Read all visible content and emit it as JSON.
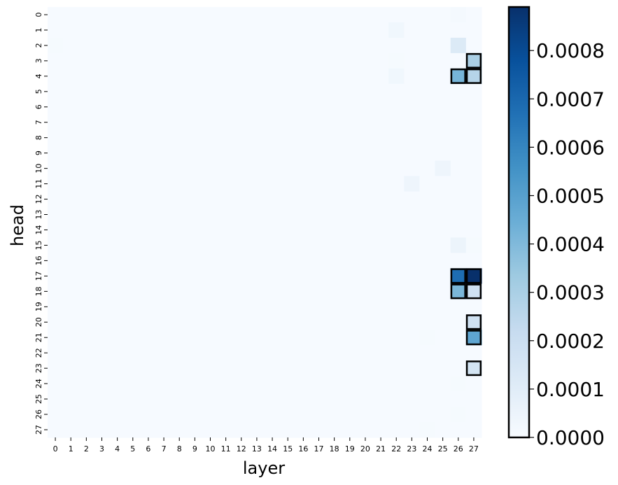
{
  "chart_data": {
    "type": "heatmap",
    "title": "",
    "xlabel": "layer",
    "ylabel": "head",
    "x_categories": [
      "0",
      "1",
      "2",
      "3",
      "4",
      "5",
      "6",
      "7",
      "8",
      "9",
      "10",
      "11",
      "12",
      "13",
      "14",
      "15",
      "16",
      "17",
      "18",
      "19",
      "20",
      "21",
      "22",
      "23",
      "24",
      "25",
      "26",
      "27"
    ],
    "y_categories": [
      "0",
      "1",
      "2",
      "3",
      "4",
      "5",
      "6",
      "7",
      "8",
      "9",
      "10",
      "11",
      "12",
      "13",
      "14",
      "15",
      "16",
      "17",
      "18",
      "19",
      "20",
      "21",
      "22",
      "23",
      "24",
      "25",
      "26",
      "27"
    ],
    "colormap": "Blues",
    "color_range": [
      0,
      0.00089
    ],
    "colorbar_ticks": [
      "0.0000",
      "0.0001",
      "0.0002",
      "0.0003",
      "0.0004",
      "0.0005",
      "0.0006",
      "0.0007",
      "0.0008"
    ],
    "colorbar_tick_values": [
      0,
      0.0001,
      0.0002,
      0.0003,
      0.0004,
      0.0005,
      0.0006,
      0.0007,
      0.0008
    ],
    "background_value": 4e-06,
    "cells": [
      {
        "layer": 26,
        "head": 0,
        "value": 1.5e-05
      },
      {
        "layer": 22,
        "head": 1,
        "value": 3e-05
      },
      {
        "layer": 0,
        "head": 2,
        "value": 1e-05
      },
      {
        "layer": 26,
        "head": 2,
        "value": 0.00012
      },
      {
        "layer": 27,
        "head": 3,
        "value": 0.0003,
        "highlighted": true
      },
      {
        "layer": 22,
        "head": 3,
        "value": 1e-05
      },
      {
        "layer": 22,
        "head": 4,
        "value": 3e-05
      },
      {
        "layer": 26,
        "head": 4,
        "value": 0.00042,
        "highlighted": true
      },
      {
        "layer": 27,
        "head": 4,
        "value": 0.00027,
        "highlighted": true
      },
      {
        "layer": 25,
        "head": 10,
        "value": 4e-05
      },
      {
        "layer": 23,
        "head": 11,
        "value": 4e-05
      },
      {
        "layer": 26,
        "head": 15,
        "value": 5e-05
      },
      {
        "layer": 27,
        "head": 15,
        "value": 1e-05
      },
      {
        "layer": 26,
        "head": 17,
        "value": 0.00068,
        "highlighted": true
      },
      {
        "layer": 27,
        "head": 17,
        "value": 0.00089,
        "highlighted": true
      },
      {
        "layer": 26,
        "head": 18,
        "value": 0.00041,
        "highlighted": true
      },
      {
        "layer": 27,
        "head": 18,
        "value": 0.00018,
        "highlighted": true
      },
      {
        "layer": 27,
        "head": 20,
        "value": 0.00018,
        "highlighted": true
      },
      {
        "layer": 27,
        "head": 21,
        "value": 0.00048,
        "highlighted": true
      },
      {
        "layer": 24,
        "head": 21,
        "value": 1e-05
      },
      {
        "layer": 27,
        "head": 23,
        "value": 0.00016,
        "highlighted": true
      },
      {
        "layer": 26,
        "head": 24,
        "value": 1e-05
      },
      {
        "layer": 26,
        "head": 26,
        "value": 1e-05
      },
      {
        "layer": 24,
        "head": 27,
        "value": 1e-05
      }
    ],
    "colors": {
      "frame": "#000000"
    }
  }
}
